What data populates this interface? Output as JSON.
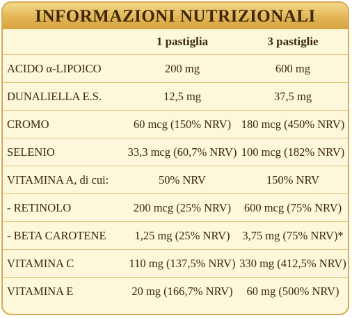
{
  "header": {
    "title": "INFORMAZIONI NUTRIZIONALI"
  },
  "table": {
    "columns": [
      "1 pastiglia",
      "3 pastiglie"
    ],
    "rows": [
      [
        "ACIDO α-LIPOICO",
        "200 mg",
        "600 mg"
      ],
      [
        "DUNALIELLA E.S.",
        "12,5 mg",
        "37,5 mg"
      ],
      [
        "CROMO",
        "60 mcg (150% NRV)",
        "180 mcg (450% NRV)"
      ],
      [
        "SELENIO",
        "33,3 mcg (60,7% NRV)",
        "100 mcg (182% NRV)"
      ],
      [
        "VITAMINA A, di cui:",
        "50% NRV",
        "150% NRV"
      ],
      [
        "- RETINOLO",
        "200 mcg (25% NRV)",
        "600 mcg (75% NRV)"
      ],
      [
        "- BETA CAROTENE",
        "1,25 mg (25% NRV)",
        "3,75 mg (75% NRV)*"
      ],
      [
        "VITAMINA C",
        "110 mg (137,5% NRV)",
        "330 mg (412,5% NRV)"
      ],
      [
        "VITAMINA E",
        "20 mg (166,7% NRV)",
        "60 mg (500% NRV)"
      ]
    ]
  }
}
